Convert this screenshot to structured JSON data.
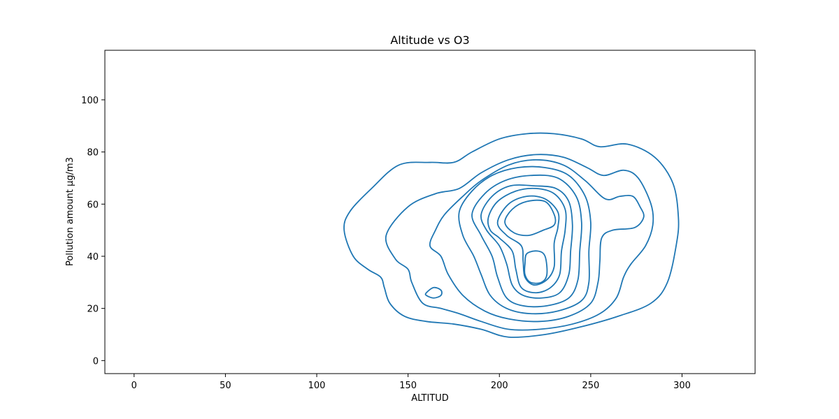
{
  "chart_data": {
    "type": "contour",
    "title": "Altitude vs O3",
    "xlabel": "ALTITUD",
    "ylabel": "Pollution amount µg/m3",
    "xlim": [
      -16,
      340
    ],
    "ylim": [
      -5,
      119
    ],
    "xticks": [
      0,
      50,
      100,
      150,
      200,
      250,
      300
    ],
    "yticks": [
      0,
      20,
      40,
      60,
      80,
      100
    ],
    "color": "#1f77b4",
    "grid": false,
    "contours": [
      {
        "level": 1,
        "points": [
          [
            118,
            57
          ],
          [
            130,
            66
          ],
          [
            145,
            75
          ],
          [
            162,
            76
          ],
          [
            175,
            76
          ],
          [
            185,
            80
          ],
          [
            200,
            85
          ],
          [
            215,
            87
          ],
          [
            230,
            87
          ],
          [
            245,
            85
          ],
          [
            255,
            82
          ],
          [
            270,
            83
          ],
          [
            285,
            78
          ],
          [
            295,
            68
          ],
          [
            298,
            55
          ],
          [
            297,
            45
          ],
          [
            292,
            30
          ],
          [
            283,
            22
          ],
          [
            265,
            17
          ],
          [
            245,
            13
          ],
          [
            225,
            10
          ],
          [
            205,
            9
          ],
          [
            190,
            12
          ],
          [
            175,
            14
          ],
          [
            160,
            15
          ],
          [
            148,
            17
          ],
          [
            140,
            22
          ],
          [
            137,
            28
          ],
          [
            135,
            32
          ],
          [
            128,
            35
          ],
          [
            120,
            40
          ],
          [
            115,
            50
          ]
        ]
      },
      {
        "level": 2,
        "points": [
          [
            138,
            48
          ],
          [
            150,
            59
          ],
          [
            165,
            64
          ],
          [
            178,
            66
          ],
          [
            190,
            72
          ],
          [
            205,
            77
          ],
          [
            220,
            79
          ],
          [
            235,
            78
          ],
          [
            248,
            74
          ],
          [
            257,
            71
          ],
          [
            268,
            73
          ],
          [
            276,
            70
          ],
          [
            283,
            60
          ],
          [
            284,
            52
          ],
          [
            280,
            44
          ],
          [
            272,
            37
          ],
          [
            268,
            32
          ],
          [
            264,
            24
          ],
          [
            255,
            18
          ],
          [
            240,
            14
          ],
          [
            222,
            12
          ],
          [
            205,
            12
          ],
          [
            190,
            15
          ],
          [
            178,
            18
          ],
          [
            168,
            20
          ],
          [
            158,
            22
          ],
          [
            152,
            30
          ],
          [
            150,
            35
          ],
          [
            143,
            39
          ]
        ]
      },
      {
        "level": 3,
        "points": [
          [
            170,
            56
          ],
          [
            180,
            63
          ],
          [
            190,
            69
          ],
          [
            205,
            75
          ],
          [
            220,
            77
          ],
          [
            235,
            75
          ],
          [
            247,
            69
          ],
          [
            258,
            62
          ],
          [
            266,
            63
          ],
          [
            273,
            63
          ],
          [
            277,
            59
          ],
          [
            279,
            55
          ],
          [
            274,
            51
          ],
          [
            262,
            50
          ],
          [
            256,
            47
          ],
          [
            255,
            38
          ],
          [
            254,
            30
          ],
          [
            250,
            22
          ],
          [
            238,
            17
          ],
          [
            222,
            15
          ],
          [
            205,
            16
          ],
          [
            192,
            19
          ],
          [
            180,
            25
          ],
          [
            172,
            33
          ],
          [
            168,
            40
          ],
          [
            162,
            44
          ],
          [
            165,
            50
          ]
        ]
      },
      {
        "level": 4,
        "points": [
          [
            178,
            57
          ],
          [
            185,
            65
          ],
          [
            196,
            71
          ],
          [
            210,
            74
          ],
          [
            225,
            74
          ],
          [
            238,
            71
          ],
          [
            247,
            63
          ],
          [
            250,
            53
          ],
          [
            249,
            42
          ],
          [
            249,
            30
          ],
          [
            245,
            23
          ],
          [
            232,
            19
          ],
          [
            217,
            18
          ],
          [
            204,
            20
          ],
          [
            195,
            25
          ],
          [
            190,
            33
          ],
          [
            186,
            40
          ],
          [
            180,
            48
          ]
        ]
      },
      {
        "level": 5,
        "points": [
          [
            185,
            56
          ],
          [
            192,
            64
          ],
          [
            203,
            69
          ],
          [
            217,
            71
          ],
          [
            232,
            70
          ],
          [
            242,
            63
          ],
          [
            245,
            53
          ],
          [
            244,
            42
          ],
          [
            243,
            31
          ],
          [
            238,
            24
          ],
          [
            226,
            21
          ],
          [
            213,
            21
          ],
          [
            204,
            24
          ],
          [
            199,
            32
          ],
          [
            196,
            40
          ],
          [
            190,
            48
          ]
        ]
      },
      {
        "level": 6,
        "points": [
          [
            190,
            56
          ],
          [
            196,
            63
          ],
          [
            206,
            67
          ],
          [
            219,
            67
          ],
          [
            231,
            66
          ],
          [
            238,
            61
          ],
          [
            240,
            52
          ],
          [
            239,
            42
          ],
          [
            238,
            33
          ],
          [
            233,
            26
          ],
          [
            223,
            24
          ],
          [
            213,
            25
          ],
          [
            207,
            29
          ],
          [
            204,
            37
          ],
          [
            200,
            44
          ],
          [
            193,
            50
          ]
        ]
      },
      {
        "level": 7,
        "points": [
          [
            194,
            55
          ],
          [
            199,
            61
          ],
          [
            209,
            65
          ],
          [
            220,
            66
          ],
          [
            230,
            64
          ],
          [
            236,
            58
          ],
          [
            236,
            50
          ],
          [
            234,
            42
          ],
          [
            233,
            33
          ],
          [
            228,
            28
          ],
          [
            220,
            26
          ],
          [
            212,
            28
          ],
          [
            209,
            35
          ],
          [
            207,
            42
          ],
          [
            200,
            47
          ],
          [
            195,
            50
          ]
        ]
      },
      {
        "level": 8,
        "points": [
          [
            199,
            53
          ],
          [
            205,
            60
          ],
          [
            215,
            63
          ],
          [
            225,
            62
          ],
          [
            232,
            57
          ],
          [
            232,
            51
          ],
          [
            230,
            45
          ],
          [
            230,
            36
          ],
          [
            226,
            31
          ],
          [
            219,
            29
          ],
          [
            214,
            32
          ],
          [
            213,
            38
          ],
          [
            212,
            44
          ],
          [
            204,
            48
          ]
        ]
      },
      {
        "level": 9,
        "points": [
          [
            203,
            53
          ],
          [
            207,
            58
          ],
          [
            215,
            61
          ],
          [
            225,
            61
          ],
          [
            230,
            56
          ],
          [
            230,
            52
          ],
          [
            224,
            50
          ],
          [
            216,
            48
          ],
          [
            208,
            49
          ]
        ]
      },
      {
        "level": 9,
        "points": [
          [
            214,
            37
          ],
          [
            215,
            41
          ],
          [
            221,
            42
          ],
          [
            225,
            40
          ],
          [
            226,
            33
          ],
          [
            223,
            30
          ],
          [
            217,
            30
          ],
          [
            214,
            33
          ]
        ]
      },
      {
        "level": 3,
        "points": [
          [
            160,
            26
          ],
          [
            164,
            28
          ],
          [
            168,
            27
          ],
          [
            168,
            25
          ],
          [
            164,
            24
          ],
          [
            160,
            25
          ]
        ]
      }
    ]
  }
}
